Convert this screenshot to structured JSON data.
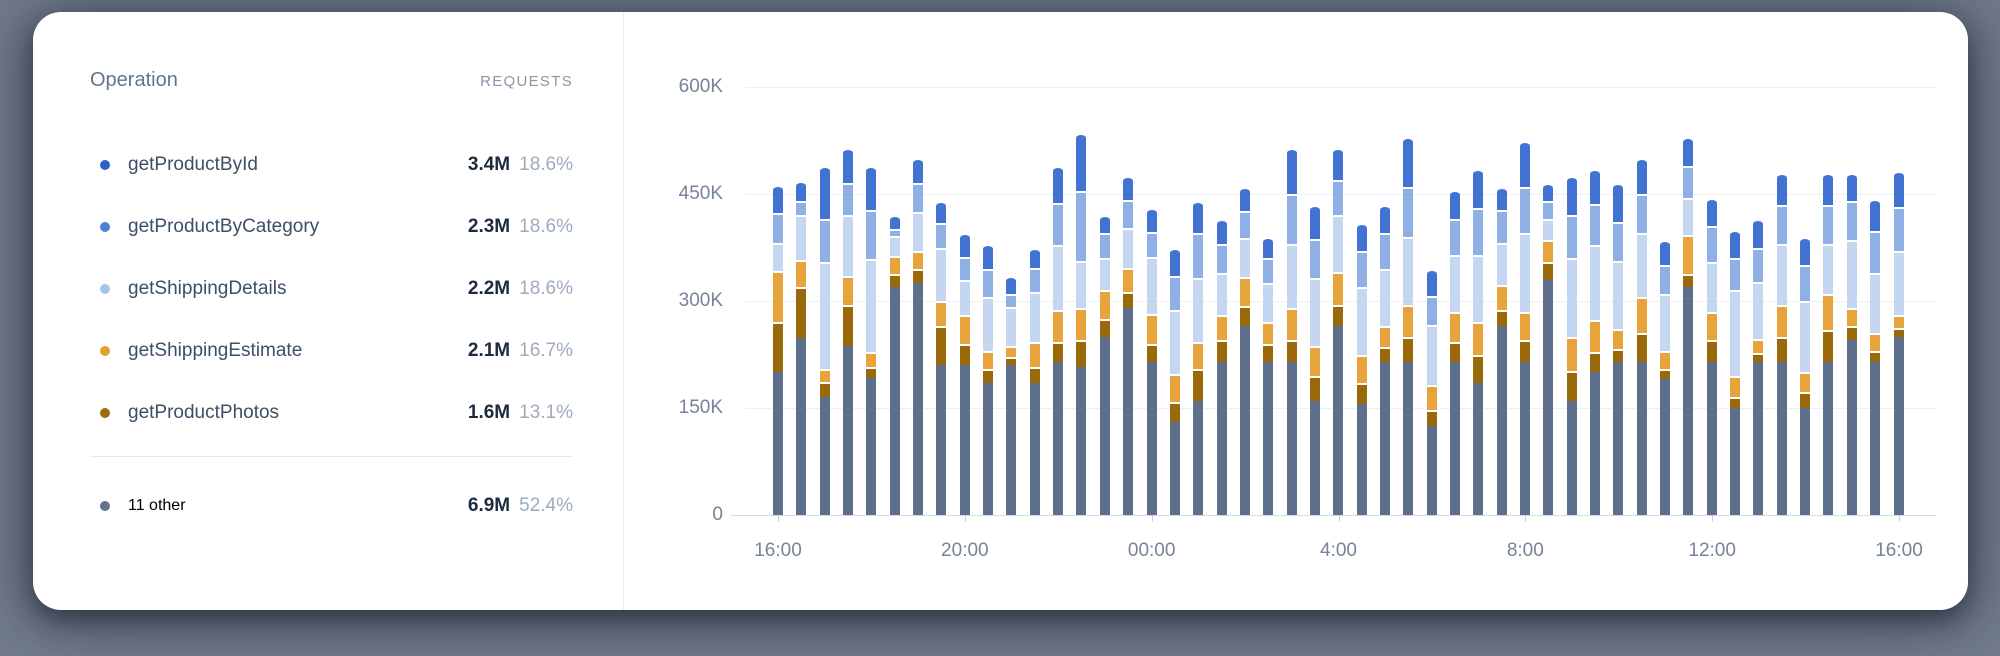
{
  "table": {
    "header": {
      "operation": "Operation",
      "requests": "REQUESTS"
    },
    "rows": [
      {
        "label": "getProductById",
        "value": "3.4M",
        "pct": "18.6%",
        "dot_color": "#2c63c7"
      },
      {
        "label": "getProductByCategory",
        "value": "2.3M",
        "pct": "18.6%",
        "dot_color": "#4f80da"
      },
      {
        "label": "getShippingDetails",
        "value": "2.2M",
        "pct": "18.6%",
        "dot_color": "#a6c3ee"
      },
      {
        "label": "getShippingEstimate",
        "value": "2.1M",
        "pct": "16.7%",
        "dot_color": "#e2a032"
      },
      {
        "label": "getProductPhotos",
        "value": "1.6M",
        "pct": "13.1%",
        "dot_color": "#9a6a0b"
      }
    ],
    "other_row": {
      "label": "11 other",
      "value": "6.9M",
      "pct": "52.4%",
      "dot_color": "#64748b"
    }
  },
  "chart_data": {
    "type": "bar",
    "stacked": true,
    "unit": "requests (thousands)",
    "y_axis": {
      "max": 600,
      "tick_labels": [
        "600K",
        "450K",
        "300K",
        "150K",
        "0"
      ],
      "grid": true
    },
    "x_axis": {
      "tick_labels": [
        "16:00",
        "20:00",
        "00:00",
        "4:00",
        "8:00",
        "12:00",
        "16:00"
      ],
      "label_bar_indices": [
        0,
        8,
        16,
        24,
        32,
        40,
        48
      ],
      "interval": "30 minutes"
    },
    "legend_position": "left-table",
    "series": [
      {
        "name": "11 other",
        "color": "#5d6f8a",
        "pattern": false,
        "values": [
          200,
          248,
          165,
          237,
          192,
          320,
          325,
          210,
          210,
          185,
          210,
          185,
          215,
          208,
          250,
          290,
          215,
          130,
          160,
          215,
          265,
          215,
          215,
          160,
          265,
          155,
          215,
          215,
          125,
          215,
          185,
          265,
          215,
          330,
          160,
          200,
          215,
          215,
          190,
          320,
          215,
          150,
          215,
          215,
          150,
          215,
          245,
          215,
          250
        ]
      },
      {
        "name": "getProductPhotos",
        "color": "#9a690a",
        "pattern": true,
        "values": [
          70,
          72,
          22,
          58,
          15,
          18,
          20,
          55,
          30,
          20,
          12,
          22,
          28,
          37,
          25,
          22,
          25,
          28,
          45,
          30,
          28,
          25,
          30,
          35,
          30,
          30,
          20,
          35,
          22,
          28,
          40,
          22,
          30,
          25,
          42,
          28,
          18,
          40,
          15,
          18,
          30,
          15,
          12,
          35,
          22,
          45,
          20,
          15,
          12
        ]
      },
      {
        "name": "getShippingEstimate",
        "color": "#e8a43c",
        "pattern": true,
        "values": [
          72,
          38,
          18,
          40,
          22,
          25,
          25,
          35,
          40,
          25,
          15,
          35,
          45,
          45,
          40,
          35,
          42,
          40,
          38,
          35,
          40,
          30,
          45,
          42,
          45,
          40,
          30,
          45,
          35,
          42,
          45,
          35,
          40,
          30,
          48,
          45,
          28,
          50,
          25,
          55,
          40,
          30,
          20,
          45,
          28,
          50,
          25,
          25,
          18
        ]
      },
      {
        "name": "getShippingDetails",
        "color": "#c5d6f1",
        "pattern": true,
        "values": [
          40,
          62,
          150,
          85,
          130,
          28,
          55,
          75,
          50,
          75,
          55,
          70,
          90,
          66,
          45,
          55,
          80,
          90,
          90,
          60,
          55,
          55,
          90,
          95,
          80,
          95,
          80,
          95,
          85,
          80,
          95,
          60,
          110,
          30,
          110,
          105,
          95,
          90,
          80,
          52,
          70,
          120,
          80,
          85,
          100,
          70,
          95,
          85,
          90
        ]
      },
      {
        "name": "getProductByCategory",
        "color": "#8fb0e4",
        "pattern": true,
        "values": [
          42,
          20,
          60,
          45,
          68,
          10,
          40,
          35,
          32,
          40,
          18,
          35,
          60,
          98,
          35,
          40,
          35,
          47,
          62,
          40,
          38,
          35,
          70,
          55,
          50,
          50,
          50,
          70,
          40,
          50,
          65,
          45,
          65,
          25,
          60,
          58,
          55,
          55,
          40,
          45,
          50,
          45,
          48,
          55,
          50,
          55,
          55,
          58,
          62
        ]
      },
      {
        "name": "getProductById",
        "color": "#4273d2",
        "pattern": true,
        "values": [
          38,
          28,
          75,
          50,
          63,
          19,
          35,
          30,
          33,
          35,
          25,
          28,
          52,
          82,
          25,
          33,
          33,
          40,
          45,
          35,
          34,
          30,
          65,
          48,
          45,
          40,
          40,
          70,
          38,
          40,
          55,
          33,
          65,
          25,
          55,
          49,
          54,
          50,
          35,
          40,
          40,
          40,
          40,
          45,
          40,
          45,
          40,
          45,
          50
        ]
      }
    ]
  }
}
